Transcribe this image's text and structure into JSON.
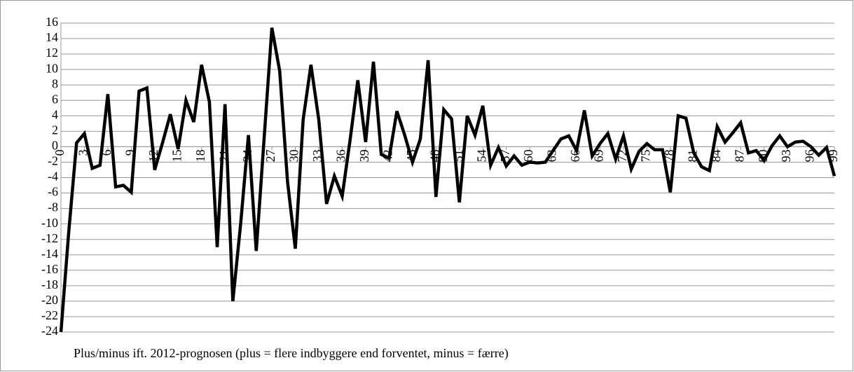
{
  "chart_data": {
    "type": "line",
    "x_label": "Plus/minus ift. 2012-prognosen (plus = flere indbyggere end forventet, minus = færre)",
    "x": [
      0,
      1,
      2,
      3,
      4,
      5,
      6,
      7,
      8,
      9,
      10,
      11,
      12,
      13,
      14,
      15,
      16,
      17,
      18,
      19,
      20,
      21,
      22,
      23,
      24,
      25,
      26,
      27,
      28,
      29,
      30,
      31,
      32,
      33,
      34,
      35,
      36,
      37,
      38,
      39,
      40,
      41,
      42,
      43,
      44,
      45,
      46,
      47,
      48,
      49,
      50,
      51,
      52,
      53,
      54,
      55,
      56,
      57,
      58,
      59,
      60,
      61,
      62,
      63,
      64,
      65,
      66,
      67,
      68,
      69,
      70,
      71,
      72,
      73,
      74,
      75,
      76,
      77,
      78,
      79,
      80,
      81,
      82,
      83,
      84,
      85,
      86,
      87,
      88,
      89,
      90,
      91,
      92,
      93,
      94,
      95,
      96,
      97,
      98,
      99
    ],
    "series": [
      {
        "color": "#000000",
        "values": [
          -24,
          -11,
          0.5,
          1.7,
          -2.8,
          -2.4,
          6.8,
          -5.2,
          -5,
          -5.9,
          7.2,
          7.6,
          -3,
          0.5,
          4.2,
          -0.3,
          6,
          3.2,
          10.6,
          5.8,
          -13,
          5.5,
          -20,
          -10,
          1.5,
          -13.5,
          1,
          15.4,
          9.8,
          -4.5,
          -13.2,
          3.5,
          10.6,
          3.5,
          -7.4,
          -3.8,
          -6.4,
          0.8,
          8.6,
          0.6,
          11,
          -1,
          -1.5,
          4.6,
          1.5,
          -2,
          1,
          11.2,
          -6.5,
          4.8,
          3.6,
          -7.2,
          4,
          1.5,
          5.3,
          -2.4,
          -0.1,
          -2.5,
          -1.2,
          -2.4,
          -2,
          -2.1,
          -2,
          -0.5,
          1,
          1.4,
          -0.5,
          4.7,
          -1.2,
          0.4,
          1.7,
          -1.6,
          1.4,
          -2.9,
          -0.6,
          0.4,
          -0.4,
          -0.4,
          -5.9,
          4,
          3.7,
          -0.8,
          -2.6,
          -3.1,
          2.6,
          0.6,
          1.8,
          3.1,
          -0.8,
          -0.5,
          -1.8,
          0.1,
          1.4,
          0,
          0.6,
          0.7,
          0,
          -1.1,
          -0.1,
          -3.8
        ]
      }
    ],
    "xlim": [
      0,
      99
    ],
    "xticks": [
      0,
      3,
      6,
      9,
      12,
      15,
      18,
      21,
      24,
      27,
      30,
      33,
      36,
      39,
      42,
      45,
      48,
      51,
      54,
      57,
      60,
      63,
      66,
      69,
      72,
      75,
      78,
      81,
      84,
      87,
      90,
      93,
      96,
      99
    ],
    "ylim": [
      -24,
      16
    ],
    "yticks": [
      -24,
      -22,
      -20,
      -18,
      -16,
      -14,
      -12,
      -10,
      -8,
      -6,
      -4,
      -2,
      0,
      2,
      4,
      6,
      8,
      10,
      12,
      14,
      16
    ],
    "grid": true
  }
}
